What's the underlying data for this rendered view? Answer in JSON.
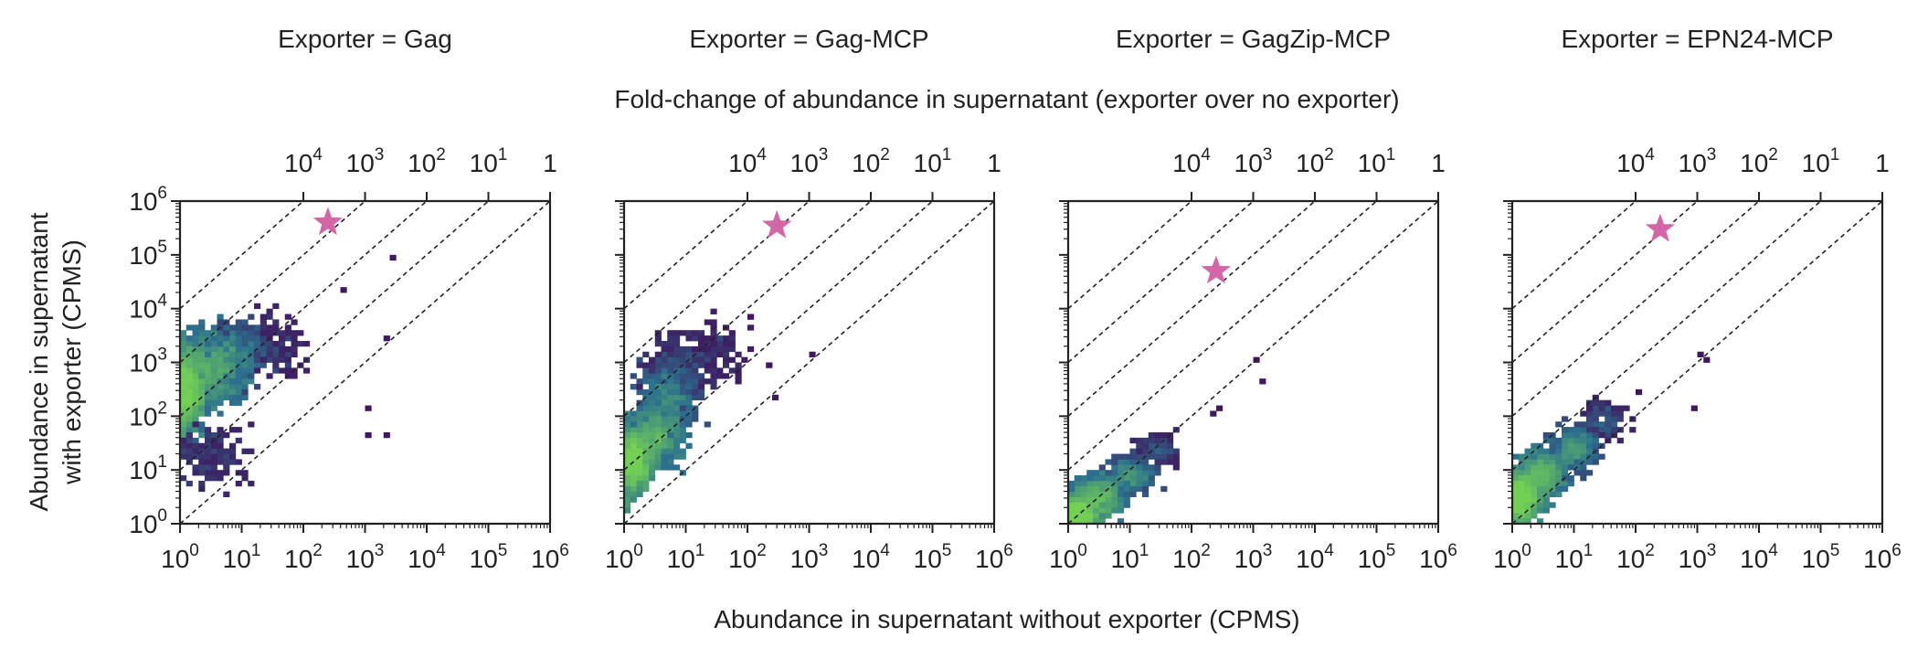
{
  "figure": {
    "x_title": "Abundance in supernatant without exporter (CPMS)",
    "y_title_line1": "Abundance in supernatant",
    "y_title_line2": "with exporter (CPMS)",
    "top_axis_title": "Fold-change of abundance in supernatant (exporter over no exporter)"
  },
  "colors": {
    "star": "#d466a8",
    "density_low": "#440154",
    "density_mid": "#2c728e",
    "density_high": "#73d055",
    "axis": "#222222",
    "guide_line": "#222222"
  },
  "chart_data": [
    {
      "type": "heatmap",
      "title": "Exporter = Gag",
      "x_scale": "log",
      "y_scale": "log",
      "xlim": [
        1,
        1000000
      ],
      "ylim": [
        1,
        1000000
      ],
      "x_ticks": [
        1,
        10,
        100,
        1000,
        10000,
        100000,
        1000000
      ],
      "y_ticks": [
        1,
        10,
        100,
        1000,
        10000,
        100000,
        1000000
      ],
      "fold_change_ticks": [
        10000,
        1000,
        100,
        10,
        1
      ],
      "guide_lines_fold_change": [
        10000,
        1000,
        100,
        10,
        1
      ],
      "grid": false,
      "highlight": {
        "marker": "star",
        "x": 250,
        "y": 400000
      },
      "density_clusters": [
        {
          "x_center": 1.2,
          "y_center": 300,
          "x_spread_decades": 0.25,
          "y_spread_decades": 0.55,
          "count": 900,
          "tone": 0.95
        },
        {
          "x_center": 3,
          "y_center": 800,
          "x_spread_decades": 0.45,
          "y_spread_decades": 0.5,
          "count": 700,
          "tone": 0.7
        },
        {
          "x_center": 8,
          "y_center": 1500,
          "x_spread_decades": 0.4,
          "y_spread_decades": 0.45,
          "count": 350,
          "tone": 0.35
        },
        {
          "x_center": 30,
          "y_center": 2000,
          "x_spread_decades": 0.4,
          "y_spread_decades": 0.5,
          "count": 130,
          "tone": 0.08
        },
        {
          "x_center": 3,
          "y_center": 20,
          "x_spread_decades": 0.5,
          "y_spread_decades": 0.5,
          "count": 160,
          "tone": 0.1
        }
      ],
      "outliers": [
        [
          1000,
          40
        ],
        [
          2000,
          50
        ],
        [
          3000,
          80000
        ],
        [
          2000,
          3000
        ],
        [
          500,
          20000
        ],
        [
          1000,
          150
        ]
      ]
    },
    {
      "type": "heatmap",
      "title": "Exporter = Gag-MCP",
      "x_scale": "log",
      "y_scale": "log",
      "xlim": [
        1,
        1000000
      ],
      "ylim": [
        1,
        1000000
      ],
      "x_ticks": [
        1,
        10,
        100,
        1000,
        10000,
        100000,
        1000000
      ],
      "y_ticks": [
        1,
        10,
        100,
        1000,
        10000,
        100000,
        1000000
      ],
      "fold_change_ticks": [
        10000,
        1000,
        100,
        10,
        1
      ],
      "guide_lines_fold_change": [
        10000,
        1000,
        100,
        10,
        1
      ],
      "grid": false,
      "highlight": {
        "marker": "star",
        "x": 300,
        "y": 350000
      },
      "density_clusters": [
        {
          "x_center": 1.3,
          "y_center": 15,
          "x_spread_decades": 0.25,
          "y_spread_decades": 0.45,
          "count": 900,
          "tone": 0.95
        },
        {
          "x_center": 3,
          "y_center": 40,
          "x_spread_decades": 0.35,
          "y_spread_decades": 0.4,
          "count": 600,
          "tone": 0.7
        },
        {
          "x_center": 5,
          "y_center": 200,
          "x_spread_decades": 0.35,
          "y_spread_decades": 0.5,
          "count": 450,
          "tone": 0.45
        },
        {
          "x_center": 8,
          "y_center": 700,
          "x_spread_decades": 0.45,
          "y_spread_decades": 0.5,
          "count": 260,
          "tone": 0.1
        },
        {
          "x_center": 30,
          "y_center": 2000,
          "x_spread_decades": 0.4,
          "y_spread_decades": 0.5,
          "count": 80,
          "tone": 0.05
        }
      ],
      "outliers": [
        [
          1000,
          1500
        ],
        [
          300,
          200
        ],
        [
          200,
          800
        ],
        [
          100,
          7000
        ]
      ]
    },
    {
      "type": "heatmap",
      "title": "Exporter = GagZip-MCP",
      "x_scale": "log",
      "y_scale": "log",
      "xlim": [
        1,
        1000000
      ],
      "ylim": [
        1,
        1000000
      ],
      "x_ticks": [
        1,
        10,
        100,
        1000,
        10000,
        100000,
        1000000
      ],
      "y_ticks": [
        1,
        10,
        100,
        1000,
        10000,
        100000,
        1000000
      ],
      "fold_change_ticks": [
        10000,
        1000,
        100,
        10,
        1
      ],
      "guide_lines_fold_change": [
        10000,
        1000,
        100,
        10,
        1
      ],
      "grid": false,
      "highlight": {
        "marker": "star",
        "x": 250,
        "y": 50000
      },
      "density_clusters": [
        {
          "x_center": 1.3,
          "y_center": 1.4,
          "x_spread_decades": 0.25,
          "y_spread_decades": 0.25,
          "count": 900,
          "tone": 0.95
        },
        {
          "x_center": 3,
          "y_center": 3,
          "x_spread_decades": 0.3,
          "y_spread_decades": 0.3,
          "count": 600,
          "tone": 0.7
        },
        {
          "x_center": 10,
          "y_center": 8,
          "x_spread_decades": 0.3,
          "y_spread_decades": 0.25,
          "count": 380,
          "tone": 0.4
        },
        {
          "x_center": 30,
          "y_center": 25,
          "x_spread_decades": 0.3,
          "y_spread_decades": 0.25,
          "count": 120,
          "tone": 0.1
        }
      ],
      "outliers": [
        [
          200,
          100
        ],
        [
          300,
          150
        ],
        [
          1000,
          1000
        ],
        [
          1500,
          400
        ]
      ]
    },
    {
      "type": "heatmap",
      "title": "Exporter = EPN24-MCP",
      "x_scale": "log",
      "y_scale": "log",
      "xlim": [
        1,
        1000000
      ],
      "ylim": [
        1,
        1000000
      ],
      "x_ticks": [
        1,
        10,
        100,
        1000,
        10000,
        100000,
        1000000
      ],
      "y_ticks": [
        1,
        10,
        100,
        1000,
        10000,
        100000,
        1000000
      ],
      "fold_change_ticks": [
        10000,
        1000,
        100,
        10,
        1
      ],
      "guide_lines_fold_change": [
        10000,
        1000,
        100,
        10,
        1
      ],
      "grid": false,
      "highlight": {
        "marker": "star",
        "x": 250,
        "y": 300000
      },
      "density_clusters": [
        {
          "x_center": 1.3,
          "y_center": 3,
          "x_spread_decades": 0.25,
          "y_spread_decades": 0.35,
          "count": 900,
          "tone": 0.95
        },
        {
          "x_center": 3,
          "y_center": 8,
          "x_spread_decades": 0.3,
          "y_spread_decades": 0.35,
          "count": 600,
          "tone": 0.7
        },
        {
          "x_center": 10,
          "y_center": 25,
          "x_spread_decades": 0.3,
          "y_spread_decades": 0.3,
          "count": 420,
          "tone": 0.45
        },
        {
          "x_center": 30,
          "y_center": 80,
          "x_spread_decades": 0.3,
          "y_spread_decades": 0.3,
          "count": 160,
          "tone": 0.1
        }
      ],
      "outliers": [
        [
          1000,
          1500
        ],
        [
          800,
          150
        ],
        [
          1500,
          1000
        ],
        [
          100,
          300
        ]
      ]
    }
  ]
}
